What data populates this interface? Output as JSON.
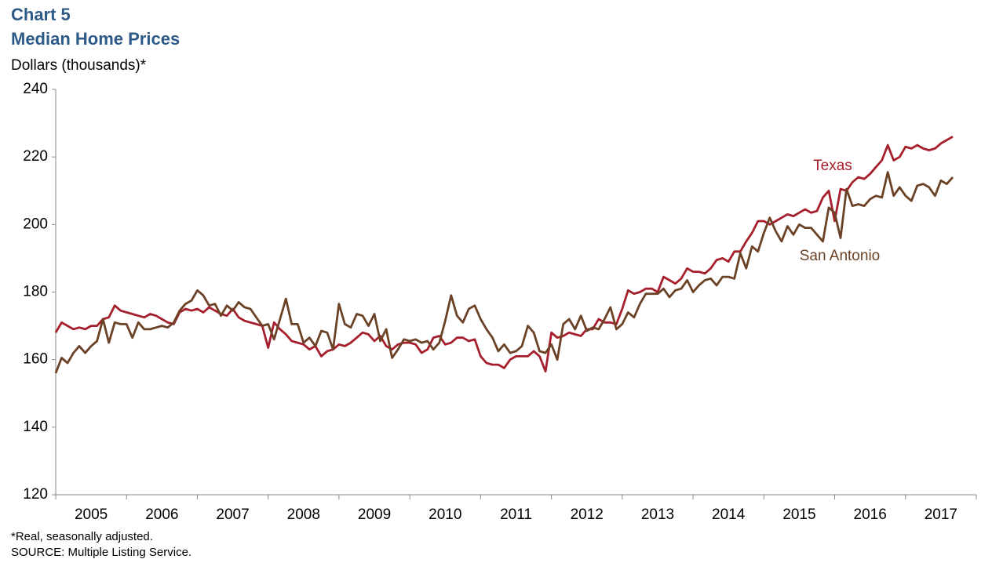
{
  "chart_data": {
    "type": "line",
    "title": "Chart 5",
    "subtitle": "Median Home Prices",
    "y_label": "Dollars (thousands)*",
    "notes": [
      "*Real, seasonally adjusted.",
      "SOURCE: Multiple Listing Service."
    ],
    "categories": [
      "2005",
      "2006",
      "2007",
      "2008",
      "2009",
      "2010",
      "2011",
      "2012",
      "2013",
      "2014",
      "2015",
      "2016",
      "2017"
    ],
    "xlim": [
      2005,
      2018
    ],
    "xticks": [
      2005,
      2006,
      2007,
      2008,
      2009,
      2010,
      2011,
      2012,
      2013,
      2014,
      2015,
      2016,
      2017,
      2018
    ],
    "ylim": [
      120,
      240
    ],
    "yticks": [
      120,
      140,
      160,
      180,
      200,
      220,
      240
    ],
    "grid": false,
    "x": [
      2005,
      2005.083,
      2005.167,
      2005.25,
      2005.333,
      2005.417,
      2005.5,
      2005.583,
      2005.667,
      2005.75,
      2005.833,
      2005.917,
      2006,
      2006.083,
      2006.167,
      2006.25,
      2006.333,
      2006.417,
      2006.5,
      2006.583,
      2006.667,
      2006.75,
      2006.833,
      2006.917,
      2007,
      2007.083,
      2007.167,
      2007.25,
      2007.333,
      2007.417,
      2007.5,
      2007.583,
      2007.667,
      2007.75,
      2007.833,
      2007.917,
      2008,
      2008.083,
      2008.167,
      2008.25,
      2008.333,
      2008.417,
      2008.5,
      2008.583,
      2008.667,
      2008.75,
      2008.833,
      2008.917,
      2009,
      2009.083,
      2009.167,
      2009.25,
      2009.333,
      2009.417,
      2009.5,
      2009.583,
      2009.667,
      2009.75,
      2009.833,
      2009.917,
      2010,
      2010.083,
      2010.167,
      2010.25,
      2010.333,
      2010.417,
      2010.5,
      2010.583,
      2010.667,
      2010.75,
      2010.833,
      2010.917,
      2011,
      2011.083,
      2011.167,
      2011.25,
      2011.333,
      2011.417,
      2011.5,
      2011.583,
      2011.667,
      2011.75,
      2011.833,
      2011.917,
      2012,
      2012.083,
      2012.167,
      2012.25,
      2012.333,
      2012.417,
      2012.5,
      2012.583,
      2012.667,
      2012.75,
      2012.833,
      2012.917,
      2013,
      2013.083,
      2013.167,
      2013.25,
      2013.333,
      2013.417,
      2013.5,
      2013.583,
      2013.667,
      2013.75,
      2013.833,
      2013.917,
      2014,
      2014.083,
      2014.167,
      2014.25,
      2014.333,
      2014.417,
      2014.5,
      2014.583,
      2014.667,
      2014.75,
      2014.833,
      2014.917,
      2015,
      2015.083,
      2015.167,
      2015.25,
      2015.333,
      2015.417,
      2015.5,
      2015.583,
      2015.667,
      2015.75,
      2015.833,
      2015.917,
      2016,
      2016.083,
      2016.167,
      2016.25,
      2016.333,
      2016.417,
      2016.5,
      2016.583,
      2016.667,
      2016.75,
      2016.833,
      2016.917,
      2017,
      2017.083,
      2017.167,
      2017.25,
      2017.333,
      2017.417,
      2017.5,
      2017.583,
      2017.667
    ],
    "series": [
      {
        "name": "Texas",
        "color": "#a51f2c",
        "values": [
          168,
          171,
          170,
          169,
          169.5,
          169,
          170,
          170,
          172,
          172.5,
          176,
          174.5,
          174,
          173.5,
          173,
          172.5,
          173.5,
          173,
          172,
          171,
          170.5,
          174,
          175,
          174.5,
          175,
          174,
          175.5,
          174.5,
          173.5,
          173,
          175,
          172.5,
          171.5,
          171,
          170.5,
          170,
          163.5,
          171,
          169,
          167.5,
          165.5,
          165,
          164.5,
          163,
          164,
          161,
          162.5,
          163,
          164.5,
          164,
          165,
          166.5,
          168,
          167.5,
          165.5,
          167,
          164,
          163,
          164.5,
          165,
          165,
          164.5,
          162,
          163,
          166.5,
          167,
          164.5,
          165,
          166.5,
          166.5,
          165.5,
          166,
          161,
          159,
          158.5,
          158.5,
          157.5,
          160,
          161,
          161,
          161,
          162.5,
          161,
          156.5,
          168,
          166.5,
          167,
          168,
          167.5,
          167,
          169,
          169,
          172,
          171,
          171,
          170.5,
          175,
          180.5,
          179.5,
          180,
          181,
          181,
          180,
          184.5,
          183.5,
          182.5,
          184,
          187,
          186,
          186,
          185.5,
          187,
          189.5,
          190,
          189,
          192,
          192,
          195,
          197.5,
          201,
          201,
          200,
          201,
          202,
          203,
          202.5,
          203.5,
          204.5,
          203.5,
          204,
          208,
          210,
          201,
          210.5,
          210,
          212.5,
          214,
          213.5,
          215,
          217,
          219,
          223.5,
          219,
          220,
          223,
          222.5,
          223.5,
          222.5,
          222,
          222.5,
          224,
          225,
          226
        ]
      },
      {
        "name": "San Antonio",
        "color": "#6b4226",
        "values": [
          156,
          160.5,
          159,
          162,
          164,
          162,
          164,
          165.5,
          172,
          165,
          171,
          170.5,
          170.5,
          166.5,
          171,
          169,
          169,
          169.5,
          170,
          169.5,
          171,
          174.5,
          176.5,
          177.5,
          180.5,
          179,
          176,
          176.5,
          173,
          176,
          174.5,
          177,
          175.5,
          175,
          172.5,
          170,
          170.5,
          166,
          172,
          178,
          170.5,
          170.5,
          165,
          166.5,
          164,
          168.5,
          168,
          163,
          176.5,
          170.5,
          169.5,
          173.5,
          173,
          170,
          173.5,
          165.5,
          169,
          160.5,
          163,
          166,
          165.5,
          166,
          165,
          165.5,
          163,
          165,
          171.5,
          179,
          173,
          171,
          175,
          176,
          172,
          169,
          166.5,
          162.5,
          164.5,
          162,
          162.5,
          164,
          170,
          168,
          162.5,
          162,
          164.5,
          160,
          170.5,
          172,
          169,
          173,
          168.5,
          169.5,
          169,
          172,
          175.5,
          169,
          170.5,
          174,
          172.5,
          176.5,
          179.5,
          179.5,
          179.5,
          181,
          178.5,
          180.5,
          181,
          183.5,
          180,
          182,
          183.5,
          184,
          182,
          184.5,
          184.5,
          184,
          191.5,
          187,
          193.5,
          192,
          197.5,
          202,
          198,
          195,
          199.5,
          197,
          200,
          199,
          199,
          197,
          195,
          205,
          203.5,
          196,
          210.5,
          205.5,
          206,
          205.5,
          207.5,
          208.5,
          208,
          215.5,
          208.5,
          211,
          208.5,
          207,
          211.5,
          212,
          211,
          208.5,
          213,
          212,
          214
        ]
      }
    ]
  }
}
